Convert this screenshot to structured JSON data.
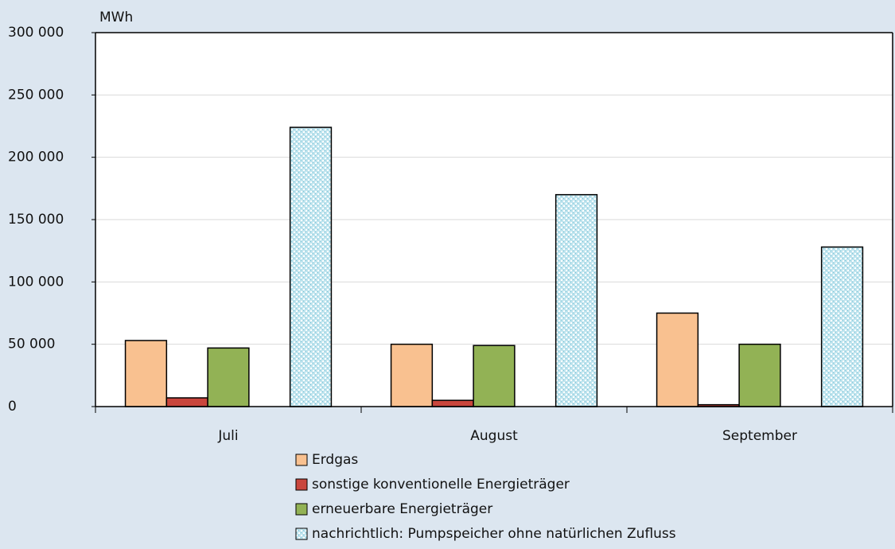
{
  "chart_data": {
    "type": "bar",
    "y_unit": "MWh",
    "categories": [
      "Juli",
      "August",
      "September"
    ],
    "series": [
      {
        "name": "Erdgas",
        "color": "#f9c190",
        "values": [
          53000,
          50000,
          75000
        ]
      },
      {
        "name": "sonstige konventionelle Energieträger",
        "color": "#c9463d",
        "values": [
          7000,
          5000,
          1500
        ]
      },
      {
        "name": "erneuerbare Energieträger",
        "color": "#92b255",
        "values": [
          47000,
          49000,
          50000
        ]
      },
      {
        "name": "nachrichtlich: Pumpspeicher ohne natürlichen Zufluss",
        "color": "#bfe4ee",
        "fill_pattern": "dotted",
        "values": [
          224000,
          170000,
          128000
        ]
      }
    ],
    "ylim": [
      0,
      300000
    ],
    "yticks": [
      0,
      {
        "value": 50000,
        "label": "50 000"
      },
      {
        "value": 100000,
        "label": "100 000"
      },
      {
        "value": 150000,
        "label": "150 000"
      },
      {
        "value": 200000,
        "label": "200 000"
      },
      {
        "value": 250000,
        "label": "250 000"
      },
      {
        "value": 300000,
        "label": "300 000"
      }
    ],
    "grid": true,
    "legend": "bottom"
  }
}
